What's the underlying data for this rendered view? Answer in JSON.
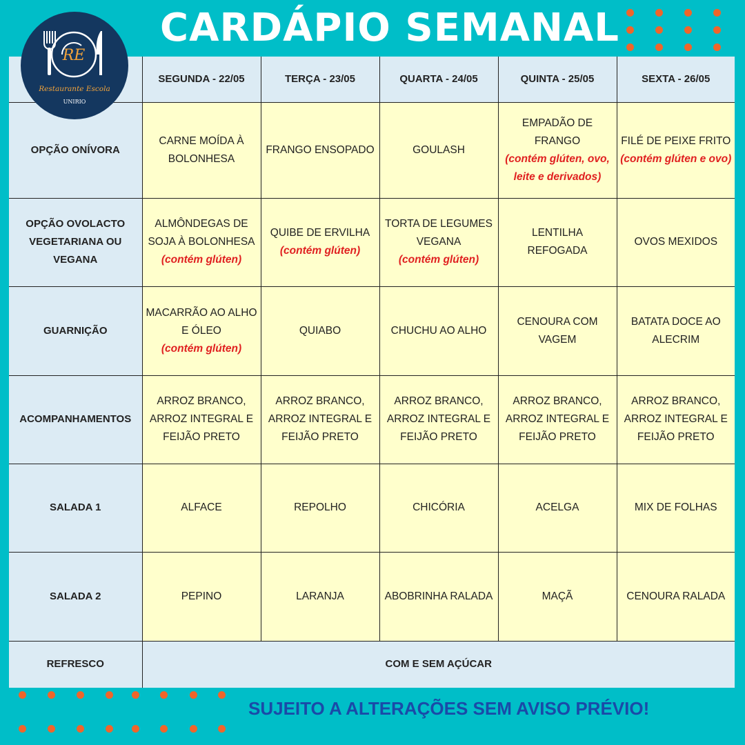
{
  "title": "CARDÁPIO SEMANAL",
  "logo": {
    "monogram": "RE",
    "name": "Restaurante Escola",
    "org": "UNIRIO"
  },
  "colors": {
    "background": "#00bec8",
    "dots": "#f0652a",
    "header": "#dcebf4",
    "cell": "#ffffcc",
    "allergen": "#e02020",
    "footer": "#1a4aa8"
  },
  "days": [
    "SEGUNDA - 22/05",
    "TERÇA - 23/05",
    "QUARTA - 24/05",
    "QUINTA - 25/05",
    "SEXTA - 26/05"
  ],
  "rows": [
    {
      "label": "OPÇÃO ONÍVORA",
      "cells": [
        {
          "dish": "CARNE MOÍDA À BOLONHESA"
        },
        {
          "dish": "FRANGO ENSOPADO"
        },
        {
          "dish": "GOULASH"
        },
        {
          "dish": "EMPADÃO DE FRANGO",
          "note": "(contém glúten, ovo, leite e derivados)"
        },
        {
          "dish": "FILÉ DE PEIXE FRITO",
          "note": "(contém glúten e ovo)"
        }
      ]
    },
    {
      "label": "OPÇÃO OVOLACTO VEGETARIANA OU VEGANA",
      "cells": [
        {
          "dish": "ALMÔNDEGAS DE SOJA À BOLONHESA",
          "note": "(contém glúten)"
        },
        {
          "dish": "QUIBE DE ERVILHA",
          "note": "(contém glúten)"
        },
        {
          "dish": "TORTA DE LEGUMES VEGANA",
          "note": "(contém glúten)"
        },
        {
          "dish": "LENTILHA REFOGADA"
        },
        {
          "dish": "OVOS MEXIDOS"
        }
      ]
    },
    {
      "label": "GUARNIÇÃO",
      "cells": [
        {
          "dish": "MACARRÃO AO ALHO E ÓLEO",
          "note": "(contém glúten)"
        },
        {
          "dish": "QUIABO"
        },
        {
          "dish": "CHUCHU AO ALHO"
        },
        {
          "dish": "CENOURA COM VAGEM"
        },
        {
          "dish": "BATATA DOCE AO ALECRIM"
        }
      ]
    },
    {
      "label": "ACOMPANHAMENTOS",
      "cells": [
        {
          "dish": "ARROZ BRANCO, ARROZ INTEGRAL E FEIJÃO PRETO"
        },
        {
          "dish": "ARROZ BRANCO, ARROZ INTEGRAL E FEIJÃO PRETO"
        },
        {
          "dish": "ARROZ BRANCO, ARROZ INTEGRAL E FEIJÃO PRETO"
        },
        {
          "dish": "ARROZ BRANCO, ARROZ INTEGRAL E FEIJÃO PRETO"
        },
        {
          "dish": "ARROZ BRANCO, ARROZ INTEGRAL E FEIJÃO PRETO"
        }
      ]
    },
    {
      "label": "SALADA 1",
      "cells": [
        {
          "dish": "ALFACE"
        },
        {
          "dish": "REPOLHO"
        },
        {
          "dish": "CHICÓRIA"
        },
        {
          "dish": "ACELGA"
        },
        {
          "dish": "MIX DE FOLHAS"
        }
      ]
    },
    {
      "label": "SALADA 2",
      "cells": [
        {
          "dish": "PEPINO"
        },
        {
          "dish": "LARANJA"
        },
        {
          "dish": "ABOBRINHA RALADA"
        },
        {
          "dish": "MAÇÃ"
        },
        {
          "dish": "CENOURA RALADA"
        }
      ]
    }
  ],
  "refresco": {
    "label": "REFRESCO",
    "value": "COM E SEM AÇÚCAR"
  },
  "footer": "SUJEITO A ALTERAÇÕES SEM AVISO PRÉVIO!"
}
